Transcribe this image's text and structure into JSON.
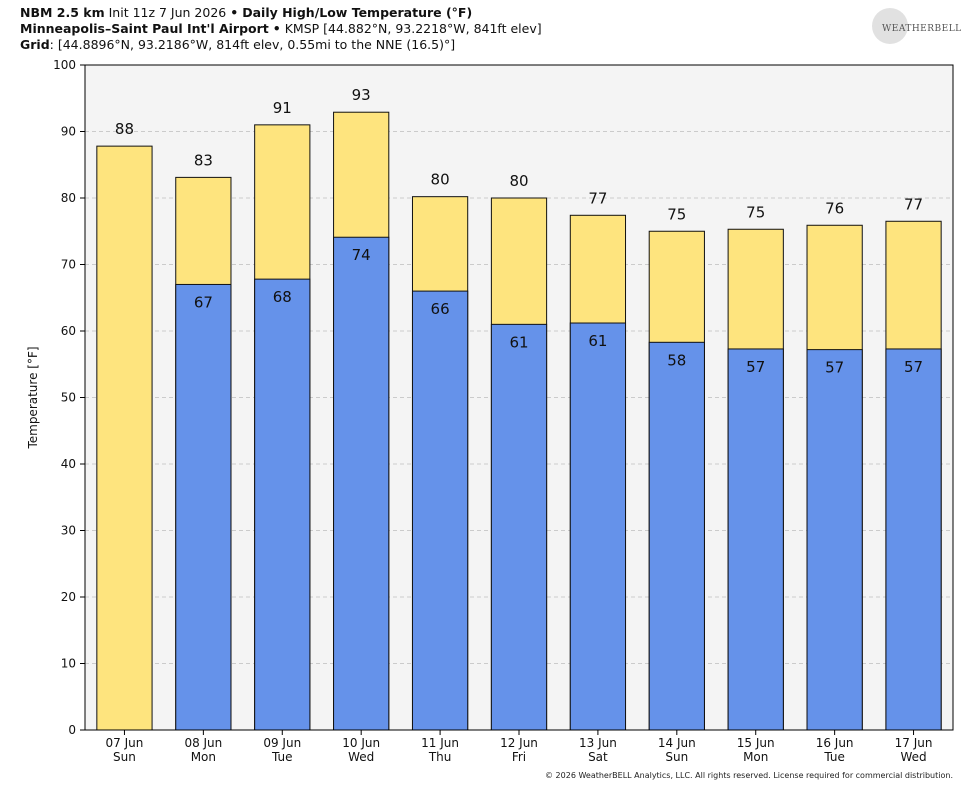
{
  "header": {
    "model": "NBM 2.5 km",
    "init": "Init 11z 7 Jun 2026",
    "sep1": "•",
    "product": "Daily High/Low Temperature (°F)",
    "station_name": "Minneapolis–Saint Paul Int'l Airport",
    "sep2": "•",
    "station_info": "KMSP [44.882°N, 93.2218°W, 841ft elev]",
    "grid_label": "Grid",
    "grid_info": ": [44.8896°N, 93.2186°W, 814ft elev, 0.55mi to the NNE (16.5)°]"
  },
  "logo": {
    "text": "WEATHERBELL"
  },
  "footer": {
    "copyright": "© 2026 WeatherBELL Analytics, LLC. All rights reserved. License required for commercial distribution."
  },
  "chart_data": {
    "type": "bar",
    "ylabel": "Temperature [°F]",
    "ylim": [
      0,
      100
    ],
    "yticks": [
      0,
      10,
      20,
      30,
      40,
      50,
      60,
      70,
      80,
      90,
      100
    ],
    "grid": true,
    "categories": [
      {
        "date": "07 Jun",
        "day": "Sun"
      },
      {
        "date": "08 Jun",
        "day": "Mon"
      },
      {
        "date": "09 Jun",
        "day": "Tue"
      },
      {
        "date": "10 Jun",
        "day": "Wed"
      },
      {
        "date": "11 Jun",
        "day": "Thu"
      },
      {
        "date": "12 Jun",
        "day": "Fri"
      },
      {
        "date": "13 Jun",
        "day": "Sat"
      },
      {
        "date": "14 Jun",
        "day": "Sun"
      },
      {
        "date": "15 Jun",
        "day": "Mon"
      },
      {
        "date": "16 Jun",
        "day": "Tue"
      },
      {
        "date": "17 Jun",
        "day": "Wed"
      }
    ],
    "series": [
      {
        "values": [
          87.8,
          83.1,
          91.0,
          92.9,
          80.2,
          80.0,
          77.4,
          75.0,
          75.3,
          75.9,
          76.5
        ],
        "labels": [
          "88",
          "83",
          "91",
          "93",
          "80",
          "80",
          "77",
          "75",
          "75",
          "76",
          "77"
        ],
        "color": "#fee47e"
      },
      {
        "values": [
          null,
          67.0,
          67.8,
          74.1,
          66.0,
          61.0,
          61.2,
          58.3,
          57.3,
          57.2,
          57.3
        ],
        "labels": [
          null,
          "67",
          "68",
          "74",
          "66",
          "61",
          "61",
          "58",
          "57",
          "57",
          "57"
        ],
        "color": "#6592ea"
      }
    ],
    "plot_background": "#f4f4f4",
    "grid_color": "#bdbdbd"
  }
}
